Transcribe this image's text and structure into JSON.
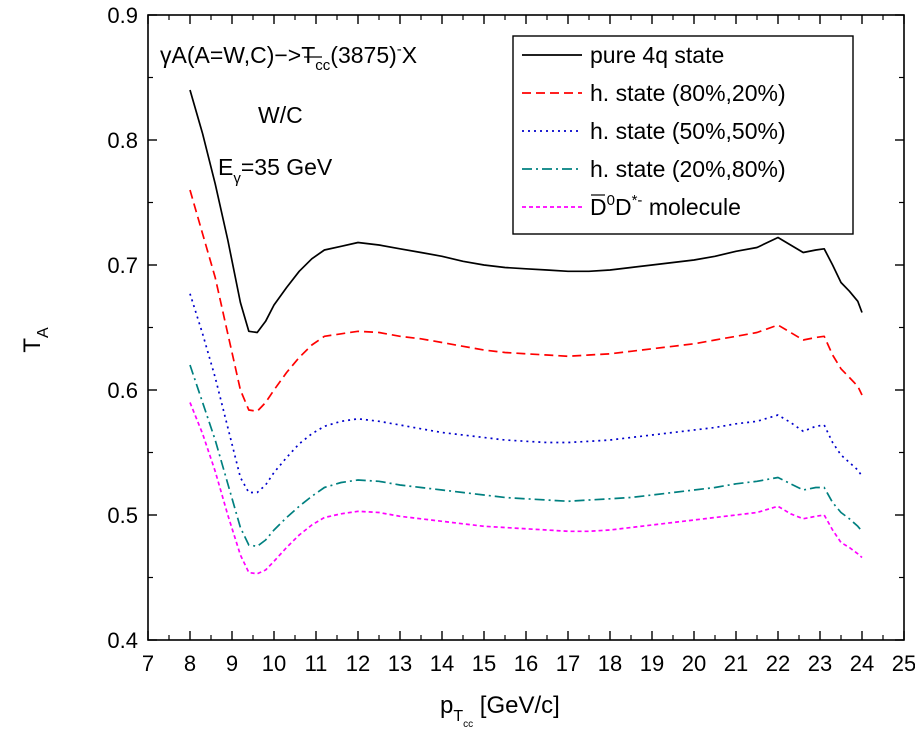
{
  "chart_data": {
    "type": "line",
    "xlabel_main": "p",
    "xlabel_sub": "T",
    "xlabel_subsub": "cc",
    "xlabel_unit": " [GeV/c]",
    "ylabel_main": "T",
    "ylabel_sub": "A",
    "xlim": [
      7,
      25
    ],
    "ylim": [
      0.4,
      0.9
    ],
    "xticks": [
      7,
      8,
      9,
      10,
      11,
      12,
      13,
      14,
      15,
      16,
      17,
      18,
      19,
      20,
      21,
      22,
      23,
      24,
      25
    ],
    "yticks": [
      "0.4",
      "0.5",
      "0.6",
      "0.7",
      "0.8",
      "0.9"
    ],
    "ytick_values": [
      0.4,
      0.5,
      0.6,
      0.7,
      0.8,
      0.9
    ],
    "annotations": {
      "reaction_prefix": "γA(A=W,C)−>T",
      "reaction_sub": "cc",
      "reaction_suffix": "(3875)",
      "reaction_sup": "-",
      "reaction_end": "X",
      "ratio": "W/C",
      "energy_prefix": "E",
      "energy_sub": "γ",
      "energy_suffix": "=35 GeV"
    },
    "legend_position": "top-right",
    "series": [
      {
        "name": "pure 4q state",
        "color": "#000000",
        "dash": "",
        "x": [
          8.0,
          8.3,
          8.6,
          8.9,
          9.2,
          9.4,
          9.6,
          9.8,
          10.0,
          10.3,
          10.6,
          10.9,
          11.2,
          11.6,
          12.0,
          12.5,
          13.0,
          13.5,
          14.0,
          14.5,
          15.0,
          15.5,
          16.0,
          16.5,
          17.0,
          17.5,
          18.0,
          18.5,
          19.0,
          19.5,
          20.0,
          20.5,
          21.0,
          21.5,
          22.0,
          22.3,
          22.6,
          22.9,
          23.1,
          23.3,
          23.5,
          23.7,
          23.9,
          24.0
        ],
        "y": [
          0.84,
          0.805,
          0.765,
          0.72,
          0.67,
          0.647,
          0.646,
          0.655,
          0.668,
          0.682,
          0.695,
          0.705,
          0.712,
          0.715,
          0.718,
          0.716,
          0.713,
          0.71,
          0.707,
          0.703,
          0.7,
          0.698,
          0.697,
          0.696,
          0.695,
          0.695,
          0.696,
          0.698,
          0.7,
          0.702,
          0.704,
          0.707,
          0.711,
          0.714,
          0.722,
          0.716,
          0.71,
          0.712,
          0.713,
          0.7,
          0.686,
          0.679,
          0.671,
          0.662
        ]
      },
      {
        "name": "h. state (80%,20%)",
        "color": "#ff0000",
        "dash": "9,5",
        "x": [
          8.0,
          8.3,
          8.6,
          8.9,
          9.2,
          9.4,
          9.6,
          9.8,
          10.0,
          10.3,
          10.6,
          10.9,
          11.2,
          11.6,
          12.0,
          12.5,
          13.0,
          13.5,
          14.0,
          14.5,
          15.0,
          15.5,
          16.0,
          16.5,
          17.0,
          17.5,
          18.0,
          18.5,
          19.0,
          19.5,
          20.0,
          20.5,
          21.0,
          21.5,
          22.0,
          22.3,
          22.6,
          22.9,
          23.1,
          23.3,
          23.5,
          23.7,
          23.9,
          24.0
        ],
        "y": [
          0.76,
          0.725,
          0.69,
          0.645,
          0.6,
          0.584,
          0.583,
          0.59,
          0.6,
          0.614,
          0.626,
          0.636,
          0.643,
          0.645,
          0.647,
          0.646,
          0.643,
          0.641,
          0.638,
          0.635,
          0.632,
          0.63,
          0.629,
          0.628,
          0.627,
          0.628,
          0.629,
          0.631,
          0.633,
          0.635,
          0.637,
          0.64,
          0.643,
          0.646,
          0.652,
          0.646,
          0.64,
          0.642,
          0.643,
          0.628,
          0.617,
          0.61,
          0.603,
          0.596
        ]
      },
      {
        "name": "h. state (50%,50%)",
        "color": "#0000cc",
        "dash": "2,4",
        "x": [
          8.0,
          8.3,
          8.6,
          8.9,
          9.2,
          9.4,
          9.6,
          9.8,
          10.0,
          10.3,
          10.6,
          10.9,
          11.2,
          11.6,
          12.0,
          12.5,
          13.0,
          13.5,
          14.0,
          14.5,
          15.0,
          15.5,
          16.0,
          16.5,
          17.0,
          17.5,
          18.0,
          18.5,
          19.0,
          19.5,
          20.0,
          20.5,
          21.0,
          21.5,
          22.0,
          22.3,
          22.6,
          22.9,
          23.1,
          23.3,
          23.5,
          23.7,
          23.9,
          24.0
        ],
        "y": [
          0.677,
          0.645,
          0.61,
          0.57,
          0.53,
          0.518,
          0.518,
          0.524,
          0.534,
          0.546,
          0.557,
          0.565,
          0.571,
          0.575,
          0.577,
          0.575,
          0.572,
          0.569,
          0.566,
          0.564,
          0.562,
          0.56,
          0.559,
          0.558,
          0.558,
          0.559,
          0.56,
          0.562,
          0.564,
          0.566,
          0.568,
          0.57,
          0.573,
          0.575,
          0.58,
          0.574,
          0.567,
          0.571,
          0.572,
          0.558,
          0.548,
          0.542,
          0.536,
          0.531
        ]
      },
      {
        "name": "h. state (20%,80%)",
        "color": "#008080",
        "dash": "10,4,2,4",
        "x": [
          8.0,
          8.3,
          8.6,
          8.9,
          9.2,
          9.4,
          9.6,
          9.8,
          10.0,
          10.3,
          10.6,
          10.9,
          11.2,
          11.6,
          12.0,
          12.5,
          13.0,
          13.5,
          14.0,
          14.5,
          15.0,
          15.5,
          16.0,
          16.5,
          17.0,
          17.5,
          18.0,
          18.5,
          19.0,
          19.5,
          20.0,
          20.5,
          21.0,
          21.5,
          22.0,
          22.3,
          22.6,
          22.9,
          23.1,
          23.3,
          23.5,
          23.7,
          23.9,
          24.0
        ],
        "y": [
          0.62,
          0.59,
          0.56,
          0.525,
          0.49,
          0.476,
          0.475,
          0.48,
          0.488,
          0.498,
          0.507,
          0.515,
          0.522,
          0.526,
          0.528,
          0.527,
          0.524,
          0.522,
          0.52,
          0.518,
          0.516,
          0.514,
          0.513,
          0.512,
          0.511,
          0.512,
          0.513,
          0.514,
          0.516,
          0.518,
          0.52,
          0.522,
          0.525,
          0.527,
          0.53,
          0.525,
          0.52,
          0.522,
          0.522,
          0.51,
          0.502,
          0.497,
          0.491,
          0.487
        ]
      },
      {
        "name": "D̄⁰D*⁻ molecule",
        "name_parts": {
          "base1": "D",
          "sup1": "0",
          "base2": "D",
          "sup2": "*-",
          "rest": " molecule"
        },
        "color": "#ff00ff",
        "dash": "4,3",
        "x": [
          8.0,
          8.3,
          8.6,
          8.9,
          9.2,
          9.4,
          9.6,
          9.8,
          10.0,
          10.3,
          10.6,
          10.9,
          11.2,
          11.6,
          12.0,
          12.5,
          13.0,
          13.5,
          14.0,
          14.5,
          15.0,
          15.5,
          16.0,
          16.5,
          17.0,
          17.5,
          18.0,
          18.5,
          19.0,
          19.5,
          20.0,
          20.5,
          21.0,
          21.5,
          22.0,
          22.3,
          22.6,
          22.9,
          23.1,
          23.3,
          23.5,
          23.7,
          23.9,
          24.0
        ],
        "y": [
          0.59,
          0.565,
          0.535,
          0.5,
          0.468,
          0.454,
          0.453,
          0.456,
          0.463,
          0.474,
          0.484,
          0.492,
          0.498,
          0.501,
          0.503,
          0.502,
          0.499,
          0.497,
          0.495,
          0.493,
          0.491,
          0.49,
          0.489,
          0.488,
          0.487,
          0.487,
          0.488,
          0.49,
          0.492,
          0.494,
          0.496,
          0.498,
          0.5,
          0.502,
          0.507,
          0.501,
          0.497,
          0.499,
          0.5,
          0.488,
          0.478,
          0.474,
          0.469,
          0.466
        ]
      }
    ]
  }
}
